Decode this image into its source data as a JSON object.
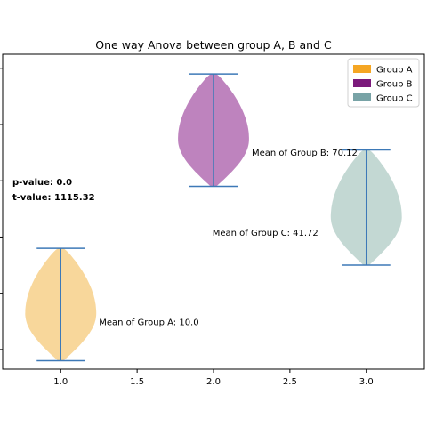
{
  "chart_data": {
    "type": "violin",
    "title": "One way Anova between group A, B and C",
    "xlabel": "",
    "ylabel": "",
    "xlim": [
      0.62,
      3.38
    ],
    "ylim": [
      -7,
      105
    ],
    "x_ticks": [
      "1.0",
      "1.5",
      "2.0",
      "2.5",
      "3.0"
    ],
    "x_tick_values": [
      1.0,
      1.5,
      2.0,
      2.5,
      3.0
    ],
    "y_tick_values": [
      0,
      20,
      40,
      60,
      80,
      100
    ],
    "y_tick_labels_visible": false,
    "legend_position": "top-right",
    "series": [
      {
        "name": "Group A",
        "position": 1.0,
        "min": -4,
        "max": 36,
        "mean": 10.0,
        "mean_label": "Mean of Group A: 10.0",
        "color": "#f5a623",
        "body_color": "#f7d089"
      },
      {
        "name": "Group B",
        "position": 2.0,
        "min": 58,
        "max": 98,
        "mean": 70.12,
        "mean_label": "Mean of Group B: 70.12",
        "color": "#7b1a7b",
        "body_color": "#b36db3"
      },
      {
        "name": "Group C",
        "position": 3.0,
        "min": 30,
        "max": 71,
        "mean": 41.72,
        "mean_label": "Mean of Group C: 41.72",
        "color": "#78a3a6",
        "body_color": "#b8d1cb"
      }
    ],
    "annotations": {
      "p_value": "p-value: 0.0",
      "t_value": "t-value: 1115.32"
    }
  },
  "colors": {
    "median_line": "#3d79b7",
    "axes": "#000000"
  }
}
